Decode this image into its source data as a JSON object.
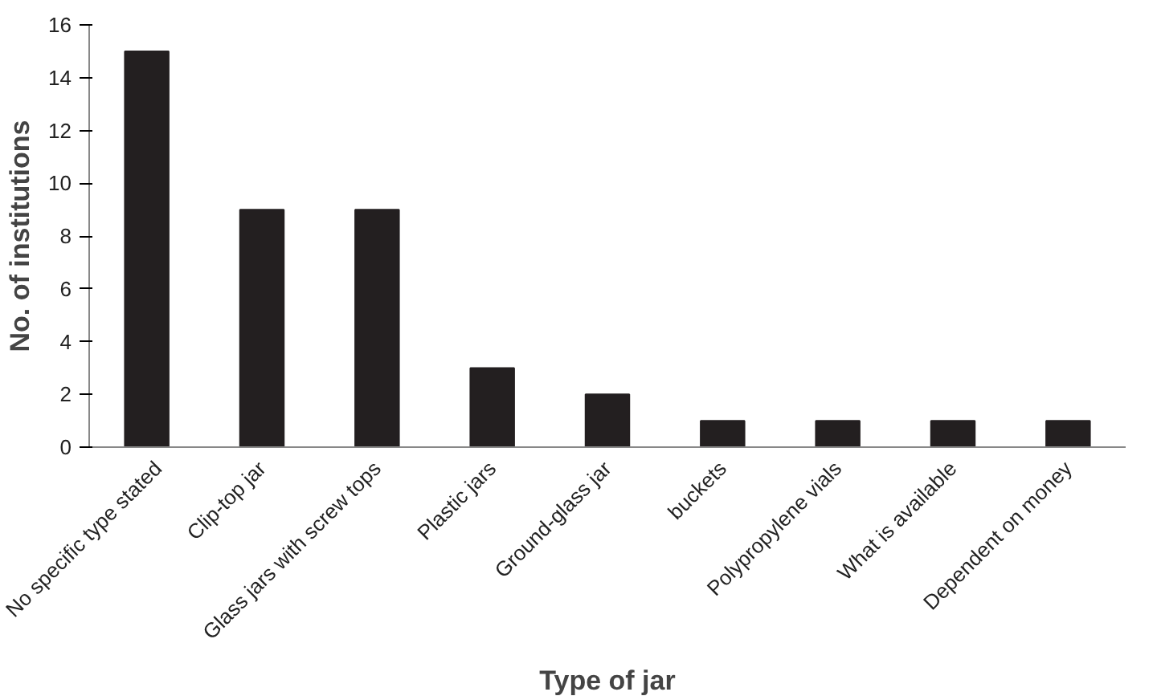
{
  "chart_data": {
    "type": "bar",
    "xlabel": "Type of jar",
    "ylabel": "No. of institutions",
    "categories": [
      "No specific type stated",
      "Clip-top jar",
      "Glass jars with screw tops",
      "Plastic jars",
      "Ground-glass jar",
      "buckets",
      "Polypropylene vials",
      "What is available",
      "Dependent on money"
    ],
    "values": [
      15,
      9,
      9,
      3,
      2,
      1,
      1,
      1,
      1
    ],
    "color": "#231f20",
    "ylim": [
      0,
      16
    ],
    "yticks": [
      0,
      2,
      4,
      6,
      8,
      10,
      12,
      14,
      16
    ],
    "grid": false
  }
}
